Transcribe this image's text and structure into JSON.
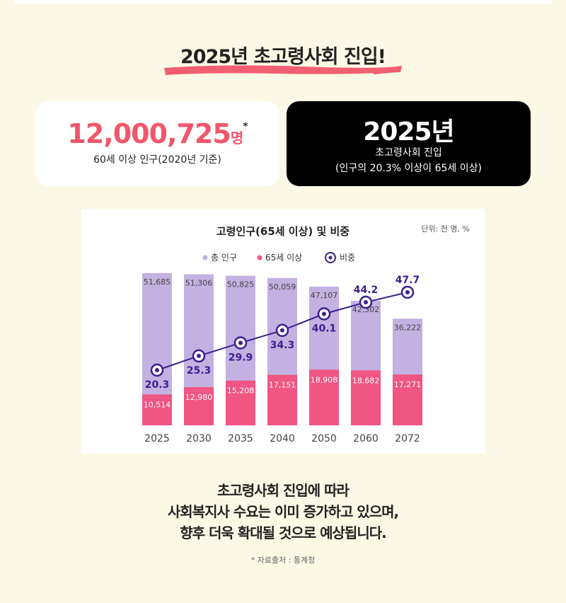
{
  "headline": "2025년 초고령사회 진입!",
  "stat_left": {
    "number": "12,000,725",
    "unit": "명",
    "asterisk": "*",
    "caption": "60세 이상 인구(2020년 기준)"
  },
  "stat_right": {
    "year": "2025년",
    "line1": "초고령사회 진입",
    "line2": "(인구의 20.3% 이상이 65세 이상)"
  },
  "colors": {
    "total": "#c3b1e1",
    "elderly": "#f05583",
    "ratio": "#3d1f8e",
    "accent": "#f1566c"
  },
  "chart_data": {
    "type": "bar",
    "title": "고령인구(65세 이상) 및 비중",
    "unit_note": "단위: 천 명, %",
    "legend": [
      "총 인구",
      "65세 이상",
      "비중"
    ],
    "legend_position": "top-center",
    "categories": [
      "2025",
      "2030",
      "2035",
      "2040",
      "2050",
      "2060",
      "2072"
    ],
    "series": [
      {
        "name": "총 인구",
        "values": [
          51685,
          51306,
          50825,
          50059,
          47107,
          42302,
          36222
        ],
        "labels": [
          "51,685",
          "51,306",
          "50,825",
          "50,059",
          "47,107",
          "42,302",
          "36,222"
        ]
      },
      {
        "name": "65세 이상",
        "values": [
          10514,
          12980,
          15208,
          17151,
          18908,
          18682,
          17271
        ],
        "labels": [
          "10,514",
          "12,980",
          "15,208",
          "17,151",
          "18,908",
          "18,682",
          "17,271"
        ]
      },
      {
        "name": "비중",
        "type": "line",
        "values": [
          20.3,
          25.3,
          29.9,
          34.3,
          40.1,
          44.2,
          47.7
        ],
        "labels": [
          "20.3",
          "25.3",
          "29.9",
          "34.3",
          "40.1",
          "44.2",
          "47.7"
        ]
      }
    ],
    "grid": false
  },
  "bottom": {
    "line1": "초고령사회 진입에 따라",
    "line2": "사회복지사 수요는 이미 증가하고 있으며,",
    "line3": "향후 더욱 확대될 것으로 예상됩니다."
  },
  "source": "* 자료출처 : 통계청"
}
